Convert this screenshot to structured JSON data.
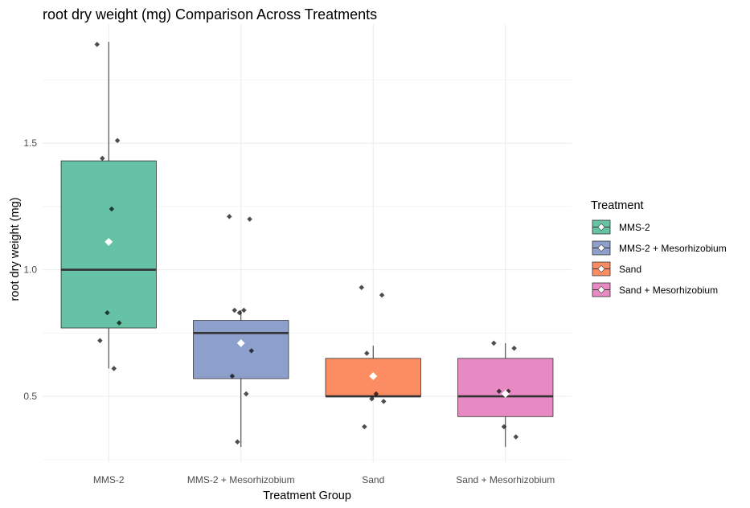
{
  "chart_data": {
    "type": "box",
    "title": "root dry weight (mg) Comparison Across Treatments",
    "xlabel": "Treatment Group",
    "ylabel": "root dry weight (mg)",
    "ylim": [
      0.24,
      1.97
    ],
    "yticks": [
      0.5,
      1.0,
      1.5
    ],
    "ytick_labels": [
      "0.5",
      "1.0",
      "1.5"
    ],
    "grid": true,
    "legend": {
      "title": "Treatment",
      "position": "right"
    },
    "categories": [
      "MMS-2",
      "MMS-2 + Mesorhizobium",
      "Sand",
      "Sand + Mesorhizobium"
    ],
    "series": [
      {
        "name": "MMS-2",
        "color": "#66c2a5",
        "box": {
          "whisker_low": 0.61,
          "q1": 0.77,
          "median": 1.0,
          "q3": 1.43,
          "whisker_high": 1.9
        },
        "mean": 1.11,
        "points": [
          1.89,
          1.51,
          1.44,
          1.24,
          0.83,
          0.79,
          0.72,
          0.61
        ]
      },
      {
        "name": "MMS-2 + Mesorhizobium",
        "color": "#8da0cb",
        "box": {
          "whisker_low": 0.3,
          "q1": 0.57,
          "median": 0.75,
          "q3": 0.8,
          "whisker_high": 0.84
        },
        "mean": 0.71,
        "points": [
          1.21,
          1.2,
          0.84,
          0.84,
          0.83,
          0.68,
          0.58,
          0.51,
          0.32
        ]
      },
      {
        "name": "Sand",
        "color": "#fc8d62",
        "box": {
          "whisker_low": 0.49,
          "q1": 0.5,
          "median": 0.5,
          "q3": 0.65,
          "whisker_high": 0.7
        },
        "mean": 0.58,
        "points": [
          0.93,
          0.9,
          0.67,
          0.51,
          0.49,
          0.48,
          0.38
        ]
      },
      {
        "name": "Sand + Mesorhizobium",
        "color": "#e78ac3",
        "box": {
          "whisker_low": 0.3,
          "q1": 0.42,
          "median": 0.5,
          "q3": 0.65,
          "whisker_high": 0.71
        },
        "mean": 0.51,
        "points": [
          0.71,
          0.69,
          0.52,
          0.52,
          0.38,
          0.34
        ]
      }
    ]
  }
}
